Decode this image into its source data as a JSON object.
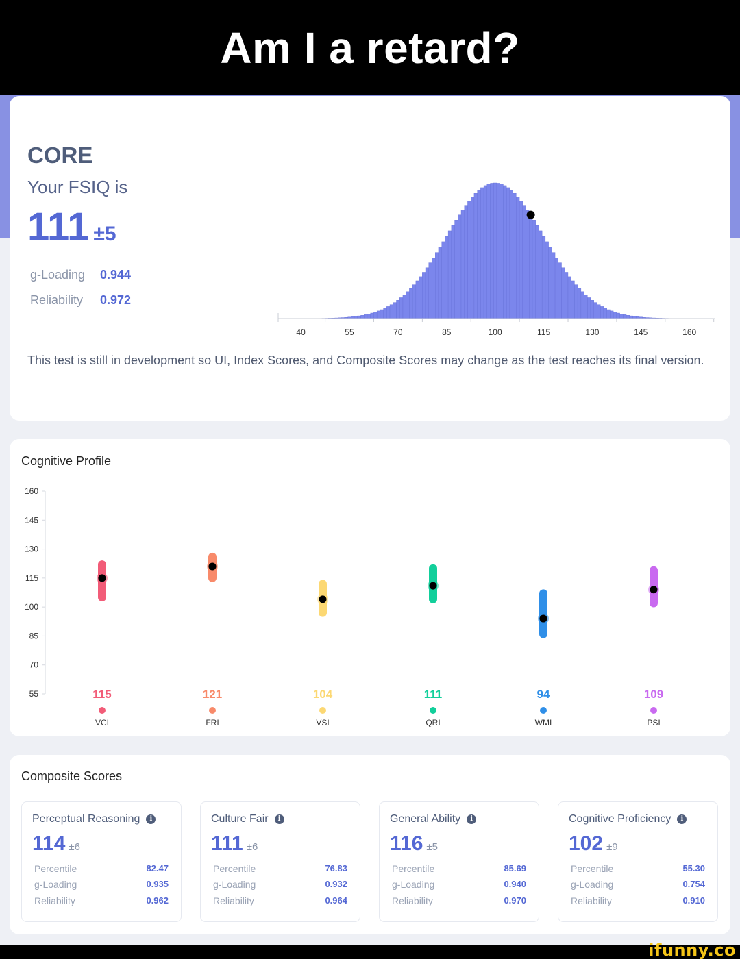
{
  "caption": "Am I a retard?",
  "core": {
    "heading": "CORE",
    "subheading": "Your FSIQ is",
    "score": "111",
    "score_pm": "±5",
    "g_loading_label": "g-Loading",
    "g_loading_value": "0.944",
    "reliability_label": "Reliability",
    "reliability_value": "0.972",
    "dev_note": "This test is still in development so UI, Index Scores, and Composite Scores may change as the test reaches its final version."
  },
  "chart_data": [
    {
      "type": "bar",
      "description_kind": "normal distribution histogram",
      "mean": 100,
      "sd": 15,
      "x_ticks": [
        "40",
        "55",
        "70",
        "85",
        "100",
        "115",
        "130",
        "145",
        "160"
      ],
      "xlim": [
        33,
        168
      ],
      "marker_x": 111,
      "bar_color": "#7b86ec",
      "marker_color": "#000000"
    },
    {
      "type": "scatter",
      "title": "Cognitive Profile",
      "y_ticks": [
        "160",
        "145",
        "130",
        "115",
        "100",
        "85",
        "70",
        "55"
      ],
      "ylim": [
        55,
        160
      ],
      "categories": [
        "VCI",
        "FRI",
        "VSI",
        "QRI",
        "WMI",
        "PSI"
      ],
      "values": [
        115,
        121,
        104,
        111,
        94,
        109
      ],
      "labels": [
        "115",
        "121",
        "104",
        "111",
        "94",
        "109"
      ],
      "ranges": [
        [
          105,
          122
        ],
        [
          115,
          126
        ],
        [
          97,
          112
        ],
        [
          104,
          120
        ],
        [
          86,
          107
        ],
        [
          102,
          119
        ]
      ],
      "colors": [
        "#f25c78",
        "#f88a6a",
        "#fcd873",
        "#12cf9b",
        "#2f8fe8",
        "#c96af0"
      ]
    }
  ],
  "composite": {
    "title": "Composite Scores",
    "cards": [
      {
        "title": "Perceptual Reasoning",
        "score": "114",
        "pm": "±6",
        "percentile": "82.47",
        "g_loading": "0.935",
        "reliability": "0.962"
      },
      {
        "title": "Culture Fair",
        "score": "111",
        "pm": "±6",
        "percentile": "76.83",
        "g_loading": "0.932",
        "reliability": "0.964"
      },
      {
        "title": "General Ability",
        "score": "116",
        "pm": "±5",
        "percentile": "85.69",
        "g_loading": "0.940",
        "reliability": "0.970"
      },
      {
        "title": "Cognitive Proficiency",
        "score": "102",
        "pm": "±9",
        "percentile": "55.30",
        "g_loading": "0.754",
        "reliability": "0.910"
      }
    ],
    "percentile_label": "Percentile",
    "g_loading_label": "g-Loading",
    "reliability_label": "Reliability",
    "info_glyph": "i"
  },
  "watermark": "ifunny.co",
  "icons": {
    "info": "info-circle-icon"
  }
}
